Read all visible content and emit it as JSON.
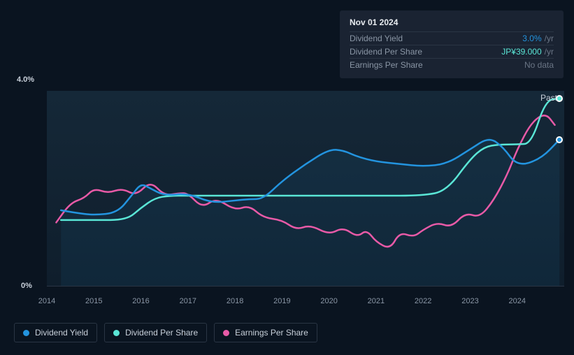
{
  "tooltip": {
    "date": "Nov 01 2024",
    "rows": [
      {
        "label": "Dividend Yield",
        "value": "3.0%",
        "suffix": "/yr",
        "value_color": "#2394df"
      },
      {
        "label": "Dividend Per Share",
        "value": "JP¥39.000",
        "suffix": "/yr",
        "value_color": "#5ae6d6"
      },
      {
        "label": "Earnings Per Share",
        "value": "No data",
        "suffix": "",
        "value_color": "#6a7585"
      }
    ]
  },
  "chart": {
    "type": "line",
    "background_color": "#0a1420",
    "plot_bg_top": "#152838",
    "plot_bg_bottom": "#0f1e2c",
    "grid_color": "#2a3544",
    "x_years": [
      "2014",
      "2015",
      "2016",
      "2017",
      "2018",
      "2019",
      "2020",
      "2021",
      "2022",
      "2023",
      "2024"
    ],
    "y_top_label": "4.0%",
    "y_bottom_label": "0%",
    "ylim": [
      0,
      4.0
    ],
    "past_label": "Past",
    "past_label_color": "#c8d0da",
    "series": {
      "dividend_yield": {
        "color": "#2394df",
        "line_width": 2.5,
        "data": [
          [
            2014.3,
            1.55
          ],
          [
            2014.6,
            1.5
          ],
          [
            2015,
            1.45
          ],
          [
            2015.5,
            1.5
          ],
          [
            2015.8,
            1.85
          ],
          [
            2016,
            2.1
          ],
          [
            2016.2,
            2.0
          ],
          [
            2016.5,
            1.85
          ],
          [
            2017,
            1.9
          ],
          [
            2017.5,
            1.7
          ],
          [
            2018,
            1.75
          ],
          [
            2018.3,
            1.78
          ],
          [
            2018.6,
            1.78
          ],
          [
            2019,
            2.15
          ],
          [
            2019.5,
            2.5
          ],
          [
            2020,
            2.8
          ],
          [
            2020.3,
            2.78
          ],
          [
            2020.6,
            2.65
          ],
          [
            2021,
            2.55
          ],
          [
            2021.5,
            2.5
          ],
          [
            2022,
            2.45
          ],
          [
            2022.5,
            2.5
          ],
          [
            2023,
            2.8
          ],
          [
            2023.4,
            3.05
          ],
          [
            2023.7,
            2.85
          ],
          [
            2024,
            2.45
          ],
          [
            2024.5,
            2.6
          ],
          [
            2024.9,
            3.0
          ]
        ]
      },
      "dividend_per_share": {
        "color": "#5ae6d6",
        "line_width": 2.5,
        "data": [
          [
            2014.3,
            1.35
          ],
          [
            2015,
            1.35
          ],
          [
            2015.7,
            1.35
          ],
          [
            2016,
            1.6
          ],
          [
            2016.3,
            1.8
          ],
          [
            2016.6,
            1.85
          ],
          [
            2017,
            1.85
          ],
          [
            2018,
            1.85
          ],
          [
            2019,
            1.85
          ],
          [
            2020,
            1.85
          ],
          [
            2021,
            1.85
          ],
          [
            2022,
            1.85
          ],
          [
            2022.5,
            1.95
          ],
          [
            2023,
            2.6
          ],
          [
            2023.3,
            2.85
          ],
          [
            2023.6,
            2.9
          ],
          [
            2024,
            2.9
          ],
          [
            2024.3,
            2.92
          ],
          [
            2024.6,
            3.8
          ],
          [
            2024.9,
            3.85
          ]
        ]
      },
      "earnings_per_share": {
        "color": "#e85aa7",
        "line_width": 2.5,
        "data": [
          [
            2014.2,
            1.3
          ],
          [
            2014.5,
            1.7
          ],
          [
            2014.8,
            1.8
          ],
          [
            2015,
            2.0
          ],
          [
            2015.3,
            1.9
          ],
          [
            2015.6,
            2.0
          ],
          [
            2015.9,
            1.85
          ],
          [
            2016.2,
            2.15
          ],
          [
            2016.5,
            1.85
          ],
          [
            2016.8,
            1.9
          ],
          [
            2017,
            1.9
          ],
          [
            2017.3,
            1.6
          ],
          [
            2017.6,
            1.8
          ],
          [
            2018,
            1.55
          ],
          [
            2018.3,
            1.65
          ],
          [
            2018.6,
            1.4
          ],
          [
            2019,
            1.35
          ],
          [
            2019.3,
            1.15
          ],
          [
            2019.6,
            1.25
          ],
          [
            2020,
            1.05
          ],
          [
            2020.3,
            1.2
          ],
          [
            2020.6,
            1.0
          ],
          [
            2020.8,
            1.15
          ],
          [
            2021,
            0.9
          ],
          [
            2021.3,
            0.75
          ],
          [
            2021.5,
            1.1
          ],
          [
            2021.8,
            1.0
          ],
          [
            2022,
            1.15
          ],
          [
            2022.3,
            1.3
          ],
          [
            2022.6,
            1.2
          ],
          [
            2022.9,
            1.5
          ],
          [
            2023.2,
            1.4
          ],
          [
            2023.5,
            1.75
          ],
          [
            2023.8,
            2.3
          ],
          [
            2024,
            2.8
          ],
          [
            2024.3,
            3.35
          ],
          [
            2024.6,
            3.55
          ],
          [
            2024.8,
            3.3
          ]
        ]
      }
    },
    "end_markers": {
      "dividend_yield": {
        "x": 2024.9,
        "y": 3.0,
        "color": "#2394df"
      },
      "dividend_per_share": {
        "x": 2024.9,
        "y": 3.85,
        "color": "#5ae6d6"
      }
    }
  },
  "legend": [
    {
      "key": "dividend_yield",
      "label": "Dividend Yield",
      "color": "#2394df"
    },
    {
      "key": "dividend_per_share",
      "label": "Dividend Per Share",
      "color": "#5ae6d6"
    },
    {
      "key": "earnings_per_share",
      "label": "Earnings Per Share",
      "color": "#e85aa7"
    }
  ]
}
